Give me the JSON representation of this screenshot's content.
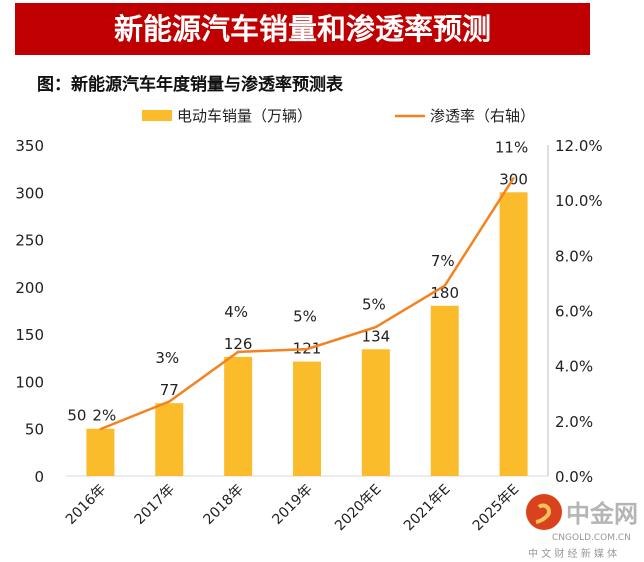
{
  "banner_title": "新能源汽车销量和渗透率预测",
  "subtitle": "图：新能源汽车年度销量与渗透率预测表",
  "watermark": {
    "name": "中金网",
    "domain": "CNGOLD.COM.CN",
    "tagline": "中 文 财 经 新 媒 体"
  },
  "colors": {
    "bar": "#fbbc2c",
    "line": "#f58220",
    "banner": "#c00000"
  },
  "chart_data": {
    "type": "bar+line",
    "categories": [
      "2016年",
      "2017年",
      "2018年",
      "2019年",
      "2020年E",
      "2021年E",
      "2025年E"
    ],
    "series": [
      {
        "name": "电动车销量（万辆）",
        "type": "bar",
        "axis": "left",
        "values": [
          50,
          77,
          126,
          121,
          134,
          180,
          300
        ],
        "labels": [
          "50",
          "77",
          "126",
          "121",
          "134",
          "180",
          "300"
        ]
      },
      {
        "name": "渗透率（右轴）",
        "type": "line",
        "axis": "right",
        "values": [
          1.7,
          2.7,
          4.5,
          4.6,
          5.4,
          6.9,
          10.8
        ],
        "labels": [
          "2%",
          "3%",
          "4%",
          "5%",
          "5%",
          "7%",
          "11%"
        ]
      }
    ],
    "left_axis": {
      "range": [
        0,
        350
      ],
      "ticks": [
        "0",
        "50",
        "100",
        "150",
        "200",
        "250",
        "300",
        "350"
      ]
    },
    "right_axis": {
      "range": [
        0,
        12
      ],
      "ticks": [
        "0.0%",
        "2.0%",
        "4.0%",
        "6.0%",
        "8.0%",
        "10.0%",
        "12.0%"
      ]
    },
    "legend_position": "top"
  }
}
